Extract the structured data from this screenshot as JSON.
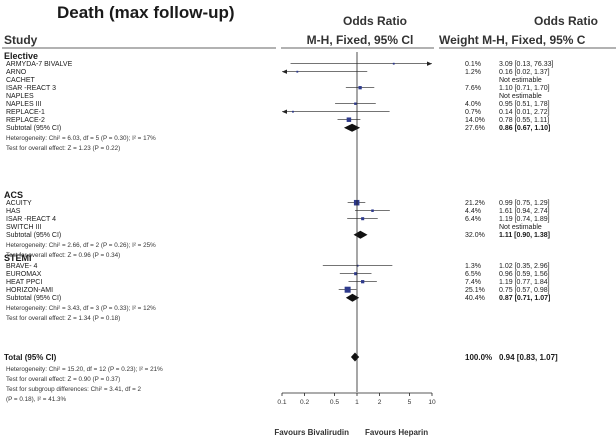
{
  "header": {
    "title": "Death (max follow-up)",
    "study": "Study",
    "or_left_1": "Odds Ratio",
    "or_left_2": "M-H, Fixed, 95% Cl",
    "or_right_1": "Odds Ratio",
    "or_right_2": "Weight M-H, Fixed, 95% C"
  },
  "groups": [
    {
      "name": "Elective",
      "studies": [
        {
          "name": "ARMYDA-7 BIVALVE",
          "weight": "0.1%",
          "ci_text": "3.09 [0.13, 76.33]",
          "or": 3.09,
          "lo": 0.13,
          "hi": 76.33
        },
        {
          "name": "ARNO",
          "weight": "1.2%",
          "ci_text": "0.16 [0.02, 1.37]",
          "or": 0.16,
          "lo": 0.02,
          "hi": 1.37
        },
        {
          "name": "CACHET",
          "weight": "",
          "ci_text": "Not estimable",
          "or": null,
          "lo": null,
          "hi": null
        },
        {
          "name": "ISAR -REACT 3",
          "weight": "7.6%",
          "ci_text": "1.10 [0.71, 1.70]",
          "or": 1.1,
          "lo": 0.71,
          "hi": 1.7
        },
        {
          "name": "NAPLES",
          "weight": "",
          "ci_text": "Not estimable",
          "or": null,
          "lo": null,
          "hi": null
        },
        {
          "name": "NAPLES III",
          "weight": "4.0%",
          "ci_text": "0.95 [0.51, 1.78]",
          "or": 0.95,
          "lo": 0.51,
          "hi": 1.78
        },
        {
          "name": "REPLACE-1",
          "weight": "0.7%",
          "ci_text": "0.14 [0.01, 2.72]",
          "or": 0.14,
          "lo": 0.01,
          "hi": 2.72
        },
        {
          "name": "REPLACE-2",
          "weight": "14.0%",
          "ci_text": "0.78 [0.55, 1.11]",
          "or": 0.78,
          "lo": 0.55,
          "hi": 1.11
        }
      ],
      "subtotal": {
        "label": "Subtotal (95% CI)",
        "weight": "27.6%",
        "ci_text": "0.86 [0.67, 1.10]",
        "or": 0.86,
        "lo": 0.67,
        "hi": 1.1
      },
      "heterogeneity": "Heterogeneity: Chi² = 6.03, df = 5 (P = 0.30); I² = 17%",
      "overall_effect": "Test for overall effect: Z = 1.23 (P = 0.22)"
    },
    {
      "name": "ACS",
      "studies": [
        {
          "name": "ACUITY",
          "weight": "21.2%",
          "ci_text": "0.99 [0.75, 1.29]",
          "or": 0.99,
          "lo": 0.75,
          "hi": 1.29
        },
        {
          "name": "HAS",
          "weight": "4.4%",
          "ci_text": "1.61 [0.94, 2.74]",
          "or": 1.61,
          "lo": 0.94,
          "hi": 2.74
        },
        {
          "name": "ISAR -REACT 4",
          "weight": "6.4%",
          "ci_text": "1.19 [0.74, 1.89]",
          "or": 1.19,
          "lo": 0.74,
          "hi": 1.89
        },
        {
          "name": "SWITCH III",
          "weight": "",
          "ci_text": "Not estimable",
          "or": null,
          "lo": null,
          "hi": null
        }
      ],
      "subtotal": {
        "label": "Subtotal (95% CI)",
        "weight": "32.0%",
        "ci_text": "1.11 [0.90, 1.38]",
        "or": 1.11,
        "lo": 0.9,
        "hi": 1.38
      },
      "heterogeneity": "Heterogeneity: Chi² = 2.66, df = 2 (P = 0.26); I² = 25%",
      "overall_effect": "Test for overall effect: Z = 0.96 (P = 0.34)"
    },
    {
      "name": "STEMI",
      "studies": [
        {
          "name": "BRAVE- 4",
          "weight": "1.3%",
          "ci_text": "1.02 [0.35, 2.96]",
          "or": 1.02,
          "lo": 0.35,
          "hi": 2.96
        },
        {
          "name": "EUROMAX",
          "weight": "6.5%",
          "ci_text": "0.96 [0.59, 1.56]",
          "or": 0.96,
          "lo": 0.59,
          "hi": 1.56
        },
        {
          "name": "HEAT PPCI",
          "weight": "7.4%",
          "ci_text": "1.19 [0.77, 1.84]",
          "or": 1.19,
          "lo": 0.77,
          "hi": 1.84
        },
        {
          "name": "HORIZON-AMI",
          "weight": "25.1%",
          "ci_text": "0.75 [0.57, 0.98]",
          "or": 0.75,
          "lo": 0.57,
          "hi": 0.98
        }
      ],
      "subtotal": {
        "label": "Subtotal (95% CI)",
        "weight": "40.4%",
        "ci_text": "0.87 [0.71, 1.07]",
        "or": 0.87,
        "lo": 0.71,
        "hi": 1.07
      },
      "heterogeneity": "Heterogeneity: Chi² = 3.43, df = 3 (P = 0.33); I² = 12%",
      "overall_effect": "Test for overall effect: Z = 1.34 (P = 0.18)"
    }
  ],
  "total": {
    "label": "Total (95% CI)",
    "weight": "100.0%",
    "ci_text": "0.94 [0.83, 1.07]",
    "or": 0.94,
    "lo": 0.83,
    "hi": 1.07,
    "heterogeneity": "Heterogeneity: Chi² = 15.20, df = 12 (P = 0.23); I² = 21%",
    "overall_effect": "Test for overall effect: Z = 0.90 (P = 0.37)",
    "subgroup_1": "Test for subgroup differences: Chi² = 3.41, df = 2",
    "subgroup_2": "(P = 0.18), I² = 41.3%"
  },
  "chart_data": {
    "type": "forest",
    "x_scale": "log",
    "xlim": [
      0.1,
      10
    ],
    "ticks": [
      0.1,
      0.2,
      0.5,
      1,
      2,
      5,
      10
    ],
    "tick_labels": [
      "0.1",
      "0.2",
      "0.5",
      "1",
      "2",
      "5",
      "10"
    ],
    "favours_left": "Favours Bivalirudin",
    "favours_right": "Favours Heparin",
    "colors": {
      "marker": "#2e3a8c",
      "diamond": "#111111",
      "line": "#222222"
    }
  }
}
